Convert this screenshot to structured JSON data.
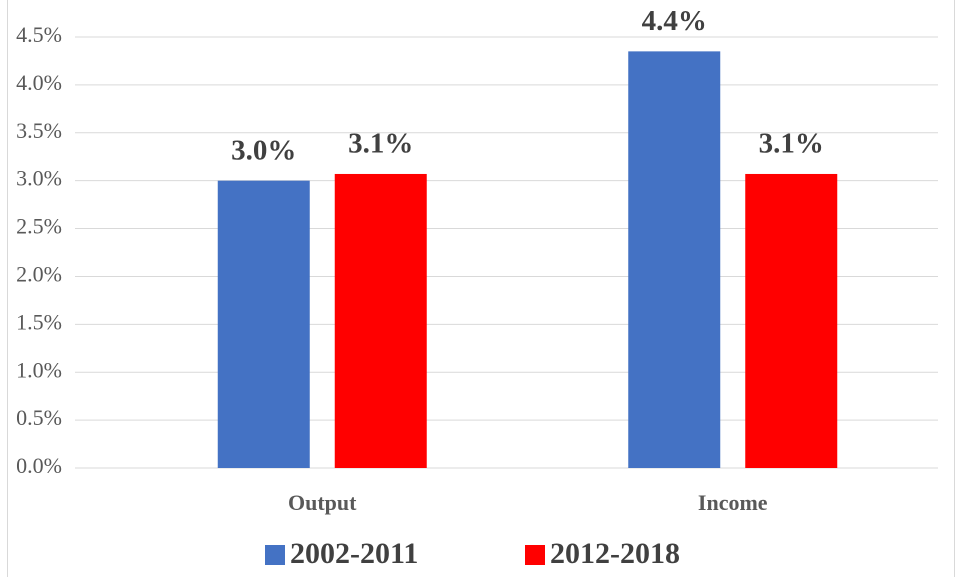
{
  "chart_data": {
    "type": "bar",
    "categories": [
      "Output",
      "Income"
    ],
    "series": [
      {
        "name": "2002-2011",
        "color": "#4472c4",
        "values": [
          3.0,
          4.35
        ],
        "value_labels": [
          "3.0%",
          "4.4%"
        ]
      },
      {
        "name": "2012-2018",
        "color": "#ff0000",
        "values": [
          3.07,
          3.07
        ],
        "value_labels": [
          "3.1%",
          "3.1%"
        ]
      }
    ],
    "ylim": [
      0,
      4.5
    ],
    "yticks": [
      {
        "value": 0,
        "label": "0.0%"
      },
      {
        "value": 0.5,
        "label": "0.5%"
      },
      {
        "value": 1,
        "label": "1.0%"
      },
      {
        "value": 1.5,
        "label": "1.5%"
      },
      {
        "value": 2,
        "label": "2.0%"
      },
      {
        "value": 2.5,
        "label": "2.5%"
      },
      {
        "value": 3,
        "label": "3.0%"
      },
      {
        "value": 3.5,
        "label": "3.5%"
      },
      {
        "value": 4,
        "label": "4.0%"
      },
      {
        "value": 4.5,
        "label": "4.5%"
      }
    ],
    "grid": true,
    "legend": "bottom"
  }
}
